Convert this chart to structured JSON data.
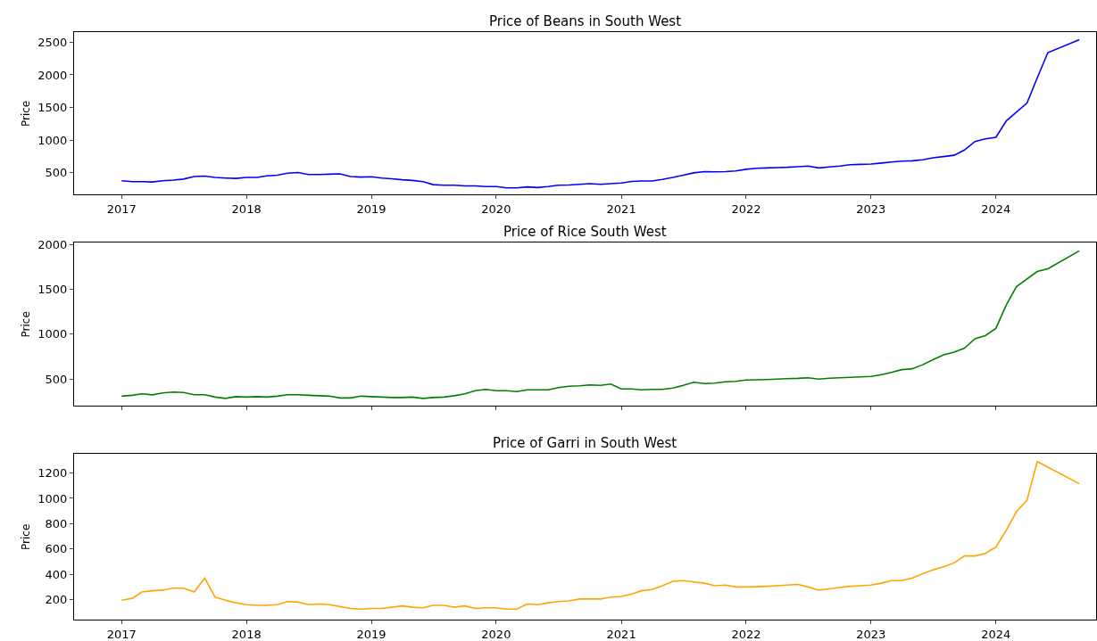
{
  "chart_data": [
    {
      "type": "line",
      "title": "Price of Beans in South West",
      "ylabel": "Price",
      "xlim": [
        "2016-08-15",
        "2024-10-20"
      ],
      "ylim": [
        165,
        2650
      ],
      "yticks": [
        500,
        1000,
        1500,
        2000,
        2500
      ],
      "xticks": [
        {
          "value": "2017",
          "label": "2017"
        },
        {
          "value": "2018",
          "label": "2018"
        },
        {
          "value": "2019",
          "label": "2019"
        },
        {
          "value": "2020",
          "label": "2020"
        },
        {
          "value": "2021",
          "label": "2021"
        },
        {
          "value": "2022",
          "label": "2022"
        },
        {
          "value": "2023",
          "label": "2023"
        },
        {
          "value": "2024",
          "label": "2024"
        }
      ],
      "series": [
        {
          "color": "#0000ff",
          "x": [
            "2017-01",
            "2017-02",
            "2017-03",
            "2017-04",
            "2017-05",
            "2017-06",
            "2017-07",
            "2017-08",
            "2017-09",
            "2017-10",
            "2017-11",
            "2017-12",
            "2018-01",
            "2018-02",
            "2018-03",
            "2018-04",
            "2018-05",
            "2018-06",
            "2018-07",
            "2018-08",
            "2018-09",
            "2018-10",
            "2018-11",
            "2018-12",
            "2019-01",
            "2019-02",
            "2019-03",
            "2019-04",
            "2019-05",
            "2019-06",
            "2019-07",
            "2019-08",
            "2019-09",
            "2019-10",
            "2019-11",
            "2019-12",
            "2020-01",
            "2020-02",
            "2020-03",
            "2020-04",
            "2020-05",
            "2020-06",
            "2020-07",
            "2020-08",
            "2020-09",
            "2020-10",
            "2020-11",
            "2020-12",
            "2021-01",
            "2021-02",
            "2021-03",
            "2021-04",
            "2021-05",
            "2021-06",
            "2021-07",
            "2021-08",
            "2021-09",
            "2021-10",
            "2021-11",
            "2021-12",
            "2022-01",
            "2022-02",
            "2022-03",
            "2022-04",
            "2022-05",
            "2022-06",
            "2022-07",
            "2022-08",
            "2022-09",
            "2022-10",
            "2022-11",
            "2022-12",
            "2023-01",
            "2023-02",
            "2023-03",
            "2023-04",
            "2023-05",
            "2023-06",
            "2023-07",
            "2023-08",
            "2023-09",
            "2023-10",
            "2023-11",
            "2023-12",
            "2024-01",
            "2024-02",
            "2024-04",
            "2024-05",
            "2024-06",
            "2024-09"
          ],
          "values": [
            380,
            365,
            365,
            360,
            380,
            390,
            405,
            445,
            450,
            430,
            420,
            415,
            430,
            430,
            455,
            465,
            495,
            505,
            475,
            475,
            480,
            485,
            445,
            435,
            440,
            420,
            410,
            395,
            385,
            365,
            320,
            310,
            310,
            300,
            300,
            290,
            290,
            270,
            270,
            285,
            275,
            290,
            310,
            315,
            325,
            335,
            325,
            335,
            345,
            370,
            375,
            375,
            400,
            430,
            465,
            500,
            520,
            515,
            520,
            530,
            555,
            570,
            575,
            580,
            585,
            595,
            605,
            575,
            590,
            605,
            625,
            630,
            635,
            650,
            665,
            680,
            685,
            700,
            730,
            750,
            770,
            850,
            980,
            1020,
            1045,
            1300,
            1570,
            1955,
            2340,
            2540
          ]
        }
      ]
    },
    {
      "type": "line",
      "title": "Price of Rice South West",
      "ylabel": "Price",
      "xlim": [
        "2016-08-15",
        "2024-10-20"
      ],
      "ylim": [
        200,
        2020
      ],
      "yticks": [
        500,
        1000,
        1500,
        2000
      ],
      "tick_labels": "y",
      "xticks": [
        {
          "value": "2017",
          "label": null
        },
        {
          "value": "2018",
          "label": null
        },
        {
          "value": "2019",
          "label": null
        },
        {
          "value": "2020",
          "label": null
        },
        {
          "value": "2021",
          "label": null
        },
        {
          "value": "2022",
          "label": null
        },
        {
          "value": "2023",
          "label": null
        },
        {
          "value": "2024",
          "label": null
        }
      ],
      "series": [
        {
          "color": "#008000",
          "x": [
            "2017-01",
            "2017-02",
            "2017-03",
            "2017-04",
            "2017-05",
            "2017-06",
            "2017-07",
            "2017-08",
            "2017-09",
            "2017-10",
            "2017-11",
            "2017-12",
            "2018-01",
            "2018-02",
            "2018-03",
            "2018-04",
            "2018-05",
            "2018-06",
            "2018-07",
            "2018-08",
            "2018-09",
            "2018-10",
            "2018-11",
            "2018-12",
            "2019-01",
            "2019-02",
            "2019-03",
            "2019-04",
            "2019-05",
            "2019-06",
            "2019-07",
            "2019-08",
            "2019-09",
            "2019-10",
            "2019-11",
            "2019-12",
            "2020-01",
            "2020-02",
            "2020-03",
            "2020-04",
            "2020-05",
            "2020-06",
            "2020-07",
            "2020-08",
            "2020-09",
            "2020-10",
            "2020-11",
            "2020-12",
            "2021-01",
            "2021-02",
            "2021-03",
            "2021-04",
            "2021-05",
            "2021-06",
            "2021-07",
            "2021-08",
            "2021-09",
            "2021-10",
            "2021-11",
            "2021-12",
            "2022-01",
            "2022-02",
            "2022-03",
            "2022-04",
            "2022-05",
            "2022-06",
            "2022-07",
            "2022-08",
            "2022-09",
            "2022-10",
            "2022-11",
            "2022-12",
            "2023-01",
            "2023-02",
            "2023-03",
            "2023-04",
            "2023-05",
            "2023-06",
            "2023-07",
            "2023-08",
            "2023-09",
            "2023-10",
            "2023-11",
            "2023-12",
            "2024-01",
            "2024-02",
            "2024-03",
            "2024-05",
            "2024-06",
            "2024-09"
          ],
          "values": [
            310,
            320,
            335,
            325,
            345,
            355,
            350,
            325,
            325,
            300,
            285,
            305,
            300,
            305,
            300,
            310,
            325,
            325,
            320,
            315,
            310,
            290,
            290,
            310,
            305,
            300,
            295,
            295,
            300,
            285,
            295,
            300,
            315,
            335,
            370,
            385,
            370,
            370,
            360,
            380,
            380,
            380,
            405,
            420,
            425,
            435,
            430,
            445,
            390,
            390,
            380,
            385,
            385,
            400,
            430,
            465,
            450,
            455,
            470,
            475,
            490,
            492,
            495,
            500,
            505,
            508,
            515,
            500,
            510,
            515,
            520,
            525,
            530,
            550,
            575,
            605,
            615,
            660,
            715,
            770,
            800,
            845,
            950,
            985,
            1065,
            1330,
            1530,
            1700,
            1730,
            1930
          ]
        }
      ]
    },
    {
      "type": "line",
      "title": "Price of Garri in South West",
      "ylabel": "Price",
      "xlim": [
        "2016-08-15",
        "2024-10-20"
      ],
      "ylim": [
        40,
        1350
      ],
      "yticks": [
        200,
        400,
        600,
        800,
        1000,
        1200
      ],
      "xticks": [
        {
          "value": "2017",
          "label": "2017"
        },
        {
          "value": "2018",
          "label": "2018"
        },
        {
          "value": "2019",
          "label": "2019"
        },
        {
          "value": "2020",
          "label": "2020"
        },
        {
          "value": "2021",
          "label": "2021"
        },
        {
          "value": "2022",
          "label": "2022"
        },
        {
          "value": "2023",
          "label": "2023"
        },
        {
          "value": "2024",
          "label": "2024"
        }
      ],
      "series": [
        {
          "color": "#ffa500",
          "x": [
            "2017-01",
            "2017-02",
            "2017-03",
            "2017-04",
            "2017-05",
            "2017-06",
            "2017-07",
            "2017-08",
            "2017-09",
            "2017-10",
            "2017-11",
            "2017-12",
            "2018-01",
            "2018-02",
            "2018-03",
            "2018-04",
            "2018-05",
            "2018-06",
            "2018-07",
            "2018-08",
            "2018-09",
            "2018-10",
            "2018-11",
            "2018-12",
            "2019-01",
            "2019-02",
            "2019-03",
            "2019-04",
            "2019-05",
            "2019-06",
            "2019-07",
            "2019-08",
            "2019-09",
            "2019-10",
            "2019-11",
            "2019-12",
            "2020-01",
            "2020-02",
            "2020-03",
            "2020-04",
            "2020-05",
            "2020-06",
            "2020-07",
            "2020-08",
            "2020-09",
            "2020-10",
            "2020-11",
            "2020-12",
            "2021-01",
            "2021-02",
            "2021-03",
            "2021-04",
            "2021-05",
            "2021-06",
            "2021-07",
            "2021-08",
            "2021-09",
            "2021-10",
            "2021-11",
            "2021-12",
            "2022-01",
            "2022-02",
            "2022-03",
            "2022-04",
            "2022-05",
            "2022-06",
            "2022-07",
            "2022-08",
            "2022-09",
            "2022-10",
            "2022-11",
            "2022-12",
            "2023-01",
            "2023-02",
            "2023-03",
            "2023-04",
            "2023-05",
            "2023-06",
            "2023-07",
            "2023-08",
            "2023-09",
            "2023-10",
            "2023-11",
            "2023-12",
            "2024-01",
            "2024-02",
            "2024-03",
            "2024-04",
            "2024-05",
            "2024-09"
          ],
          "values": [
            195,
            210,
            260,
            270,
            275,
            290,
            290,
            260,
            370,
            220,
            195,
            175,
            160,
            155,
            155,
            160,
            185,
            180,
            160,
            165,
            160,
            145,
            130,
            125,
            130,
            130,
            140,
            150,
            140,
            135,
            155,
            155,
            140,
            150,
            130,
            135,
            135,
            125,
            125,
            165,
            160,
            175,
            185,
            190,
            205,
            205,
            205,
            220,
            225,
            245,
            270,
            280,
            310,
            345,
            350,
            340,
            330,
            310,
            315,
            300,
            300,
            302,
            305,
            310,
            315,
            320,
            300,
            275,
            285,
            295,
            305,
            310,
            315,
            330,
            350,
            350,
            370,
            405,
            435,
            460,
            490,
            545,
            545,
            565,
            615,
            750,
            895,
            985,
            1290,
            1115
          ]
        }
      ]
    }
  ]
}
